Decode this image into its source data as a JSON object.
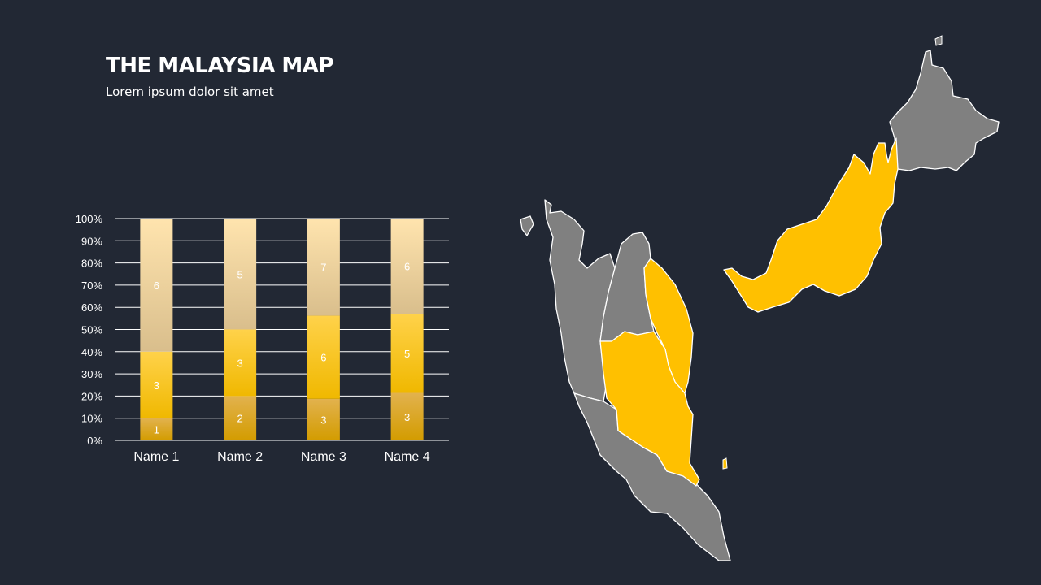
{
  "slide": {
    "title": "THE MALAYSIA MAP",
    "subtitle": "Lorem ipsum dolor sit amet"
  },
  "colors": {
    "background": "#222834",
    "highlight": "#FFC000",
    "muted_region": "#808080",
    "gridline": "#ffffff"
  },
  "chart_data": {
    "type": "bar",
    "stacked": "percent",
    "categories": [
      "Name 1",
      "Name 2",
      "Name 3",
      "Name 4"
    ],
    "series": [
      {
        "values": [
          1,
          2,
          3,
          3
        ],
        "color": "#D39C00"
      },
      {
        "values": [
          3,
          3,
          6,
          5
        ],
        "color": "#FFC000"
      },
      {
        "values": [
          6,
          5,
          7,
          6
        ],
        "color": "#FFE1A6"
      }
    ],
    "y_ticks": [
      "0%",
      "10%",
      "20%",
      "30%",
      "40%",
      "50%",
      "60%",
      "70%",
      "80%",
      "90%",
      "100%"
    ],
    "ylim": [
      0,
      100
    ],
    "grid": true,
    "data_labels": true
  },
  "map": {
    "highlighted_regions": [
      "Kelantan/Terengganu",
      "Pahang",
      "Sarawak",
      "Labuan"
    ],
    "other_regions": [
      "Sabah",
      "Perlis/Kedah/Penang/Perak",
      "Selangor/Negeri Sembilan/Melaka/Johor"
    ]
  }
}
